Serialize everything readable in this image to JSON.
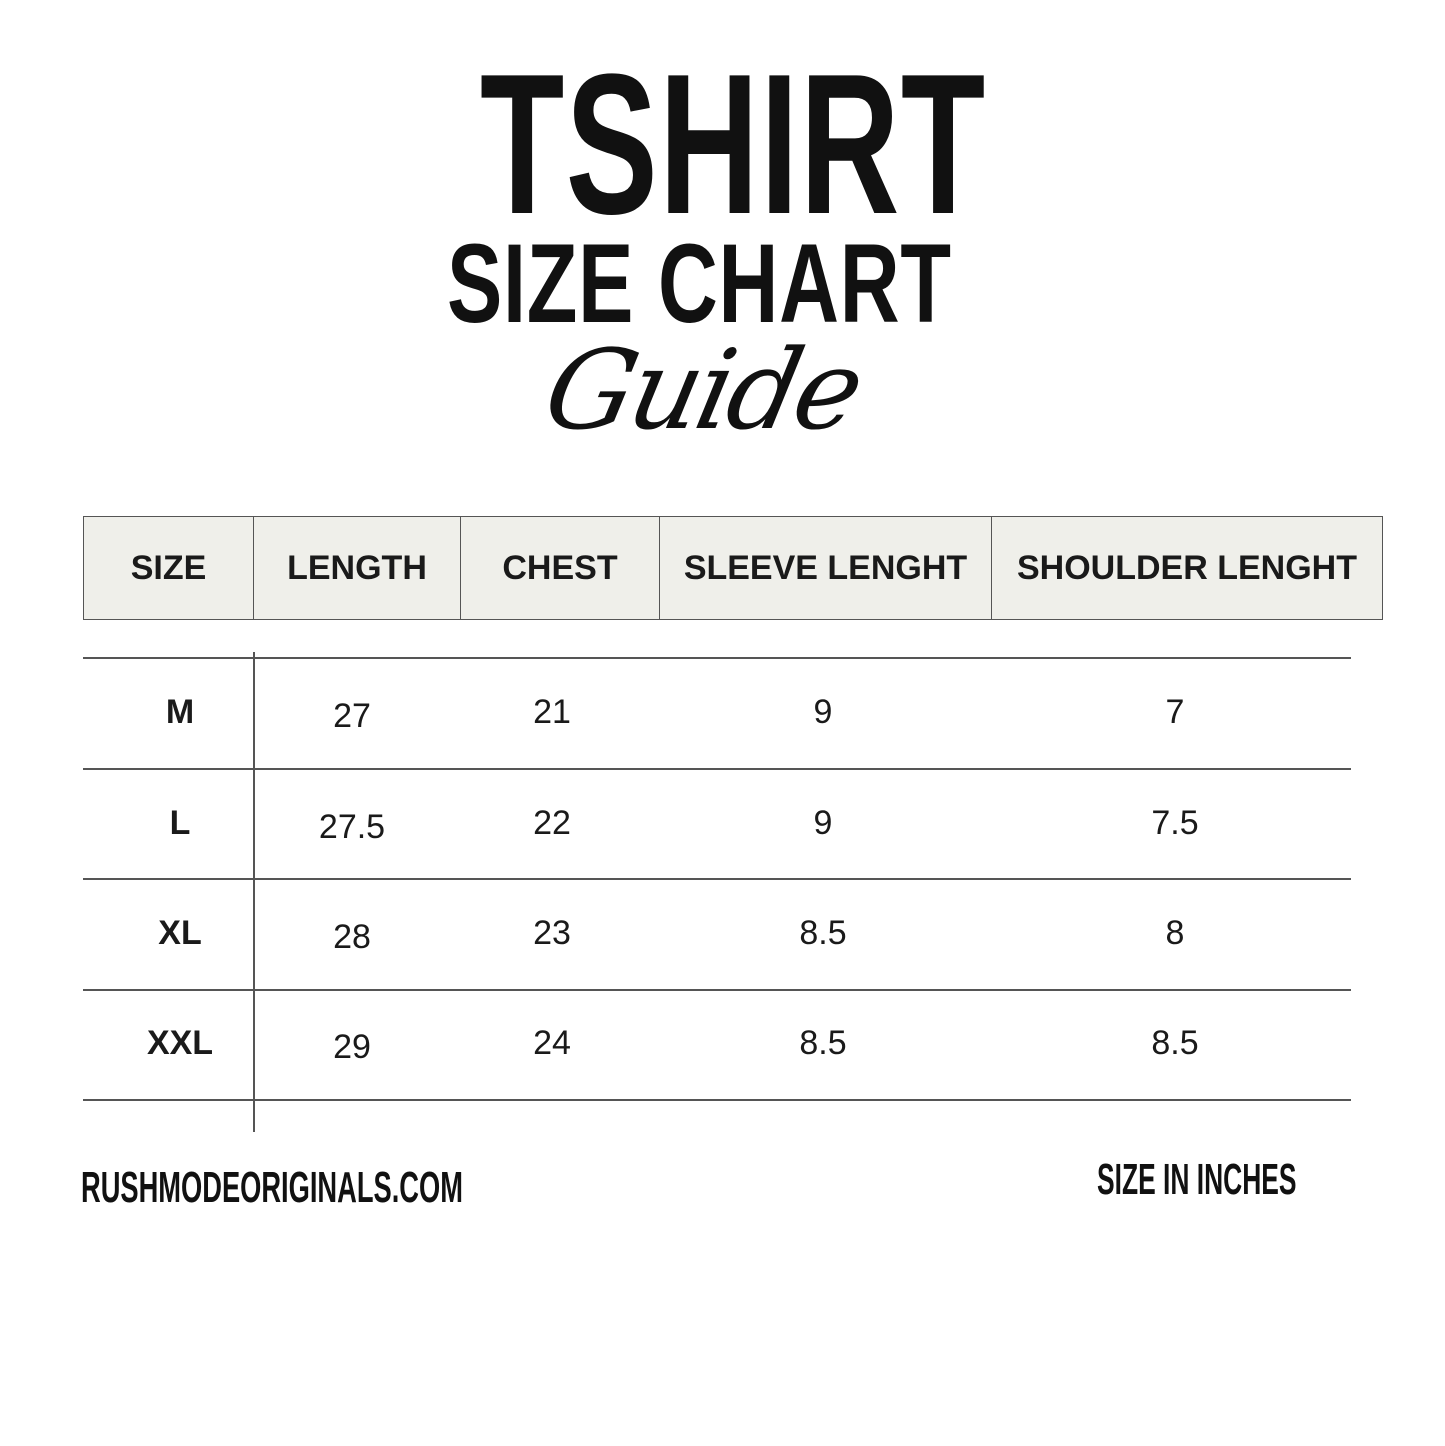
{
  "title": {
    "line1": "TSHIRT",
    "line2": "SIZE CHART",
    "line3": "Guide"
  },
  "table": {
    "headers": [
      "SIZE",
      "LENGTH",
      "CHEST",
      "SLEEVE LENGHT",
      "SHOULDER LENGHT"
    ],
    "rows": [
      [
        "M",
        "27",
        "21",
        "9",
        "7"
      ],
      [
        "L",
        "27.5",
        "22",
        "9",
        "7.5"
      ],
      [
        "XL",
        "28",
        "23",
        "8.5",
        "8"
      ],
      [
        "XXL",
        "29",
        "24",
        "8.5",
        "8.5"
      ]
    ]
  },
  "footer": {
    "website": "RUSHMODEORIGINALS.COM",
    "units": "SIZE IN INCHES"
  },
  "colors": {
    "header_bg": "#efefea",
    "text": "#111111",
    "lines": "#555555"
  }
}
